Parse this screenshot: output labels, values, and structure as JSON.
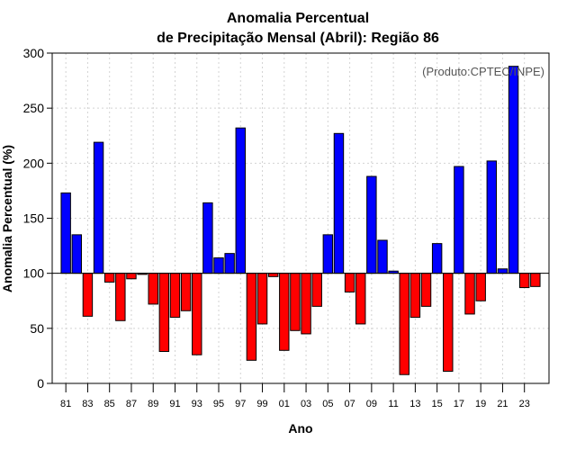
{
  "chart_data": {
    "type": "bar",
    "title_line1": "Anomalia Percentual",
    "title_line2": "de Precipitação Mensal (Abril): Região 86",
    "xlabel": "Ano",
    "ylabel": "Anomalia Percentual (%)",
    "credit": "(Produto:CPTEC/INPE)",
    "ylim": [
      0,
      300
    ],
    "yticks": [
      0,
      50,
      100,
      150,
      200,
      250,
      300
    ],
    "baseline": 100,
    "categories": [
      "1981",
      "1982",
      "1983",
      "1984",
      "1985",
      "1986",
      "1987",
      "1988",
      "1989",
      "1990",
      "1991",
      "1992",
      "1993",
      "1994",
      "1995",
      "1996",
      "1997",
      "1998",
      "1999",
      "2000",
      "2001",
      "2002",
      "2003",
      "2004",
      "2005",
      "2006",
      "2007",
      "2008",
      "2009",
      "2010",
      "2011",
      "2012",
      "2013",
      "2014",
      "2015",
      "2016",
      "2017",
      "2018",
      "2019",
      "2020",
      "2021",
      "2022",
      "2023",
      "2024"
    ],
    "xtick_labels": [
      "81",
      "83",
      "85",
      "87",
      "89",
      "91",
      "93",
      "95",
      "97",
      "99",
      "01",
      "03",
      "05",
      "07",
      "09",
      "11",
      "13",
      "15",
      "17",
      "19",
      "21",
      "23"
    ],
    "values": [
      173,
      135,
      61,
      219,
      92,
      57,
      95,
      99,
      72,
      29,
      60,
      66,
      26,
      164,
      114,
      118,
      232,
      21,
      54,
      97,
      30,
      48,
      45,
      70,
      135,
      227,
      83,
      54,
      188,
      130,
      102,
      8,
      60,
      70,
      127,
      11,
      197,
      63,
      75,
      202,
      104,
      288,
      87,
      88
    ],
    "colors": {
      "above": "#0000ff",
      "below": "#ff0000"
    }
  }
}
